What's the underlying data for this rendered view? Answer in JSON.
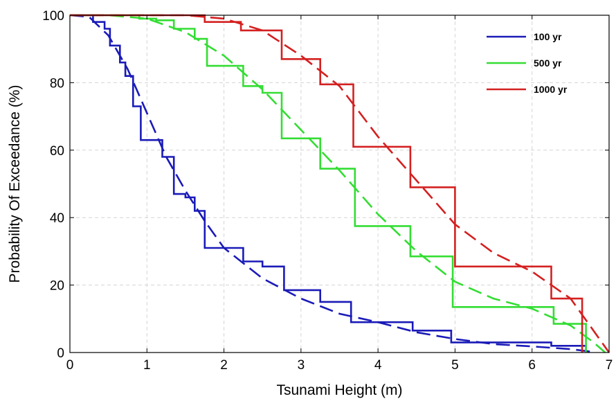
{
  "chart_data": {
    "type": "line",
    "title": "",
    "xlabel": "Tsunami Height (m)",
    "ylabel": "Probability Of Exceedance (%)",
    "xlim": [
      0,
      7
    ],
    "ylim": [
      0,
      100
    ],
    "x_ticks": [
      0,
      1,
      2,
      3,
      4,
      5,
      6,
      7
    ],
    "y_ticks": [
      0,
      20,
      40,
      60,
      80,
      100
    ],
    "grid": true,
    "legend_position": "top-right",
    "legend": [
      {
        "label": "100 yr",
        "color": "#1a1ab8"
      },
      {
        "label": "500 yr",
        "color": "#33dd33"
      },
      {
        "label": "1000 yr",
        "color": "#d42020"
      }
    ],
    "series": [
      {
        "name": "100 yr",
        "color": "#1a1ab8",
        "style": "step",
        "points": [
          [
            0,
            100
          ],
          [
            0.3,
            100
          ],
          [
            0.3,
            98
          ],
          [
            0.45,
            98
          ],
          [
            0.45,
            96
          ],
          [
            0.52,
            96
          ],
          [
            0.52,
            91
          ],
          [
            0.65,
            91
          ],
          [
            0.65,
            86
          ],
          [
            0.72,
            86
          ],
          [
            0.72,
            82
          ],
          [
            0.82,
            82
          ],
          [
            0.82,
            73
          ],
          [
            0.92,
            73
          ],
          [
            0.92,
            63
          ],
          [
            1.2,
            63
          ],
          [
            1.2,
            58
          ],
          [
            1.35,
            58
          ],
          [
            1.35,
            47
          ],
          [
            1.5,
            47
          ],
          [
            1.5,
            46
          ],
          [
            1.62,
            46
          ],
          [
            1.62,
            42
          ],
          [
            1.75,
            42
          ],
          [
            1.75,
            31
          ],
          [
            2.25,
            31
          ],
          [
            2.25,
            27
          ],
          [
            2.5,
            27
          ],
          [
            2.5,
            25.5
          ],
          [
            2.78,
            25.5
          ],
          [
            2.78,
            18.5
          ],
          [
            3.25,
            18.5
          ],
          [
            3.25,
            15
          ],
          [
            3.65,
            15
          ],
          [
            3.65,
            9
          ],
          [
            4.45,
            9
          ],
          [
            4.45,
            6.5
          ],
          [
            4.95,
            6.5
          ],
          [
            4.95,
            3
          ],
          [
            6.25,
            3
          ],
          [
            6.25,
            2
          ],
          [
            6.7,
            2
          ],
          [
            6.7,
            0
          ]
        ]
      },
      {
        "name": "100 yr",
        "color": "#1a1ab8",
        "style": "dashed",
        "points": [
          [
            0,
            100
          ],
          [
            0.25,
            99.5
          ],
          [
            0.5,
            94
          ],
          [
            0.75,
            84
          ],
          [
            1.0,
            71
          ],
          [
            1.25,
            58
          ],
          [
            1.5,
            48
          ],
          [
            1.75,
            39
          ],
          [
            2.0,
            31
          ],
          [
            2.5,
            22
          ],
          [
            3.0,
            16
          ],
          [
            3.5,
            11.5
          ],
          [
            4.0,
            9
          ],
          [
            4.5,
            6
          ],
          [
            5.0,
            4
          ],
          [
            5.5,
            2.5
          ],
          [
            6.0,
            1.8
          ],
          [
            6.5,
            1
          ],
          [
            6.75,
            0.3
          ]
        ]
      },
      {
        "name": "500 yr",
        "color": "#33dd33",
        "style": "step",
        "points": [
          [
            0,
            100
          ],
          [
            0.9,
            100
          ],
          [
            0.9,
            99
          ],
          [
            1.12,
            99
          ],
          [
            1.12,
            98.5
          ],
          [
            1.35,
            98.5
          ],
          [
            1.35,
            96
          ],
          [
            1.62,
            96
          ],
          [
            1.62,
            93
          ],
          [
            1.78,
            93
          ],
          [
            1.78,
            85
          ],
          [
            2.25,
            85
          ],
          [
            2.25,
            79
          ],
          [
            2.5,
            79
          ],
          [
            2.5,
            77
          ],
          [
            2.75,
            77
          ],
          [
            2.75,
            63.5
          ],
          [
            3.25,
            63.5
          ],
          [
            3.25,
            54.5
          ],
          [
            3.7,
            54.5
          ],
          [
            3.7,
            37.5
          ],
          [
            4.42,
            37.5
          ],
          [
            4.42,
            28.5
          ],
          [
            4.97,
            28.5
          ],
          [
            4.97,
            13.5
          ],
          [
            6.28,
            13.5
          ],
          [
            6.28,
            8.5
          ],
          [
            6.7,
            8.5
          ],
          [
            6.7,
            0
          ]
        ]
      },
      {
        "name": "500 yr",
        "color": "#33dd33",
        "style": "dashed",
        "points": [
          [
            0,
            100
          ],
          [
            0.5,
            100
          ],
          [
            1.0,
            99
          ],
          [
            1.5,
            95
          ],
          [
            2.0,
            88
          ],
          [
            2.5,
            78
          ],
          [
            3.0,
            66
          ],
          [
            3.5,
            54
          ],
          [
            4.0,
            41
          ],
          [
            4.5,
            30
          ],
          [
            5.0,
            21
          ],
          [
            5.5,
            16
          ],
          [
            6.0,
            13
          ],
          [
            6.5,
            8
          ],
          [
            6.8,
            3
          ],
          [
            6.95,
            0
          ]
        ]
      },
      {
        "name": "1000 yr",
        "color": "#d42020",
        "style": "step",
        "points": [
          [
            0,
            100
          ],
          [
            1.75,
            100
          ],
          [
            1.75,
            98
          ],
          [
            2.22,
            98
          ],
          [
            2.22,
            95.5
          ],
          [
            2.75,
            95.5
          ],
          [
            2.75,
            87
          ],
          [
            3.25,
            87
          ],
          [
            3.25,
            79.5
          ],
          [
            3.68,
            79.5
          ],
          [
            3.68,
            61
          ],
          [
            4.42,
            61
          ],
          [
            4.42,
            49
          ],
          [
            5.0,
            49
          ],
          [
            5.0,
            25.5
          ],
          [
            6.25,
            25.5
          ],
          [
            6.25,
            16
          ],
          [
            6.65,
            16
          ],
          [
            6.65,
            0
          ]
        ]
      },
      {
        "name": "1000 yr",
        "color": "#d42020",
        "style": "dashed",
        "points": [
          [
            0,
            100
          ],
          [
            1.0,
            100
          ],
          [
            1.5,
            100
          ],
          [
            2.0,
            99
          ],
          [
            2.5,
            95.5
          ],
          [
            3.0,
            88
          ],
          [
            3.5,
            79
          ],
          [
            4.0,
            64
          ],
          [
            4.5,
            51
          ],
          [
            5.0,
            38
          ],
          [
            5.5,
            29.5
          ],
          [
            6.0,
            24
          ],
          [
            6.5,
            16
          ],
          [
            6.75,
            8
          ],
          [
            7.0,
            0
          ]
        ]
      }
    ]
  }
}
